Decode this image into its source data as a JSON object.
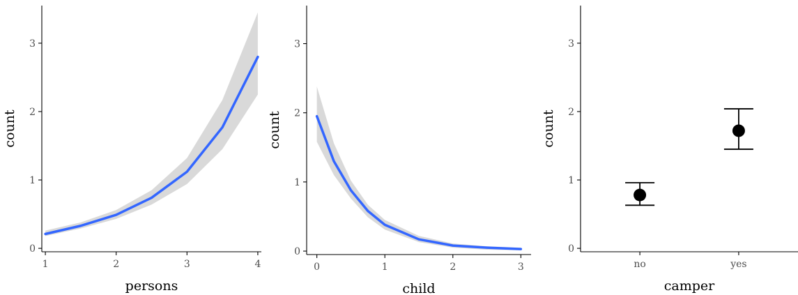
{
  "colors": {
    "line": "#3366ff",
    "ribbon": "#d9d9d9",
    "point": "#000000"
  },
  "chart_data": [
    {
      "type": "line",
      "xlabel": "persons",
      "ylabel": "count",
      "xlim": [
        0.95,
        4.05
      ],
      "ylim": [
        -0.05,
        3.55
      ],
      "x_ticks": [
        1,
        2,
        3,
        4
      ],
      "y_ticks": [
        0,
        1,
        2,
        3
      ],
      "grid": false,
      "series": [
        {
          "x": [
            1,
            1.5,
            2,
            2.5,
            3,
            3.5,
            4
          ],
          "y": [
            0.21,
            0.33,
            0.49,
            0.74,
            1.12,
            1.77,
            2.8
          ],
          "lower": [
            0.18,
            0.29,
            0.43,
            0.64,
            0.94,
            1.45,
            2.25
          ],
          "upper": [
            0.26,
            0.38,
            0.56,
            0.85,
            1.32,
            2.17,
            3.45
          ]
        }
      ]
    },
    {
      "type": "line",
      "xlabel": "child",
      "ylabel": "count",
      "xlim": [
        -0.15,
        3.15
      ],
      "ylim": [
        -0.05,
        3.55
      ],
      "x_ticks": [
        0,
        1,
        2,
        3
      ],
      "y_ticks": [
        0,
        1,
        2,
        3
      ],
      "grid": false,
      "series": [
        {
          "x": [
            0,
            0.25,
            0.5,
            0.75,
            1,
            1.5,
            2,
            2.5,
            3
          ],
          "y": [
            1.95,
            1.3,
            0.88,
            0.58,
            0.38,
            0.17,
            0.08,
            0.05,
            0.03
          ],
          "lower": [
            1.58,
            1.1,
            0.76,
            0.49,
            0.31,
            0.13,
            0.05,
            0.02,
            0.01
          ],
          "upper": [
            2.38,
            1.56,
            1.02,
            0.67,
            0.45,
            0.22,
            0.11,
            0.07,
            0.05
          ]
        }
      ]
    },
    {
      "type": "scatter",
      "xlabel": "camper",
      "ylabel": "count",
      "ylim": [
        -0.05,
        3.55
      ],
      "categories": [
        "no",
        "yes"
      ],
      "y_ticks": [
        0,
        1,
        2,
        3
      ],
      "grid": false,
      "points": [
        {
          "category": "no",
          "value": 0.78,
          "lower": 0.63,
          "upper": 0.96
        },
        {
          "category": "yes",
          "value": 1.72,
          "lower": 1.45,
          "upper": 2.04
        }
      ]
    }
  ]
}
